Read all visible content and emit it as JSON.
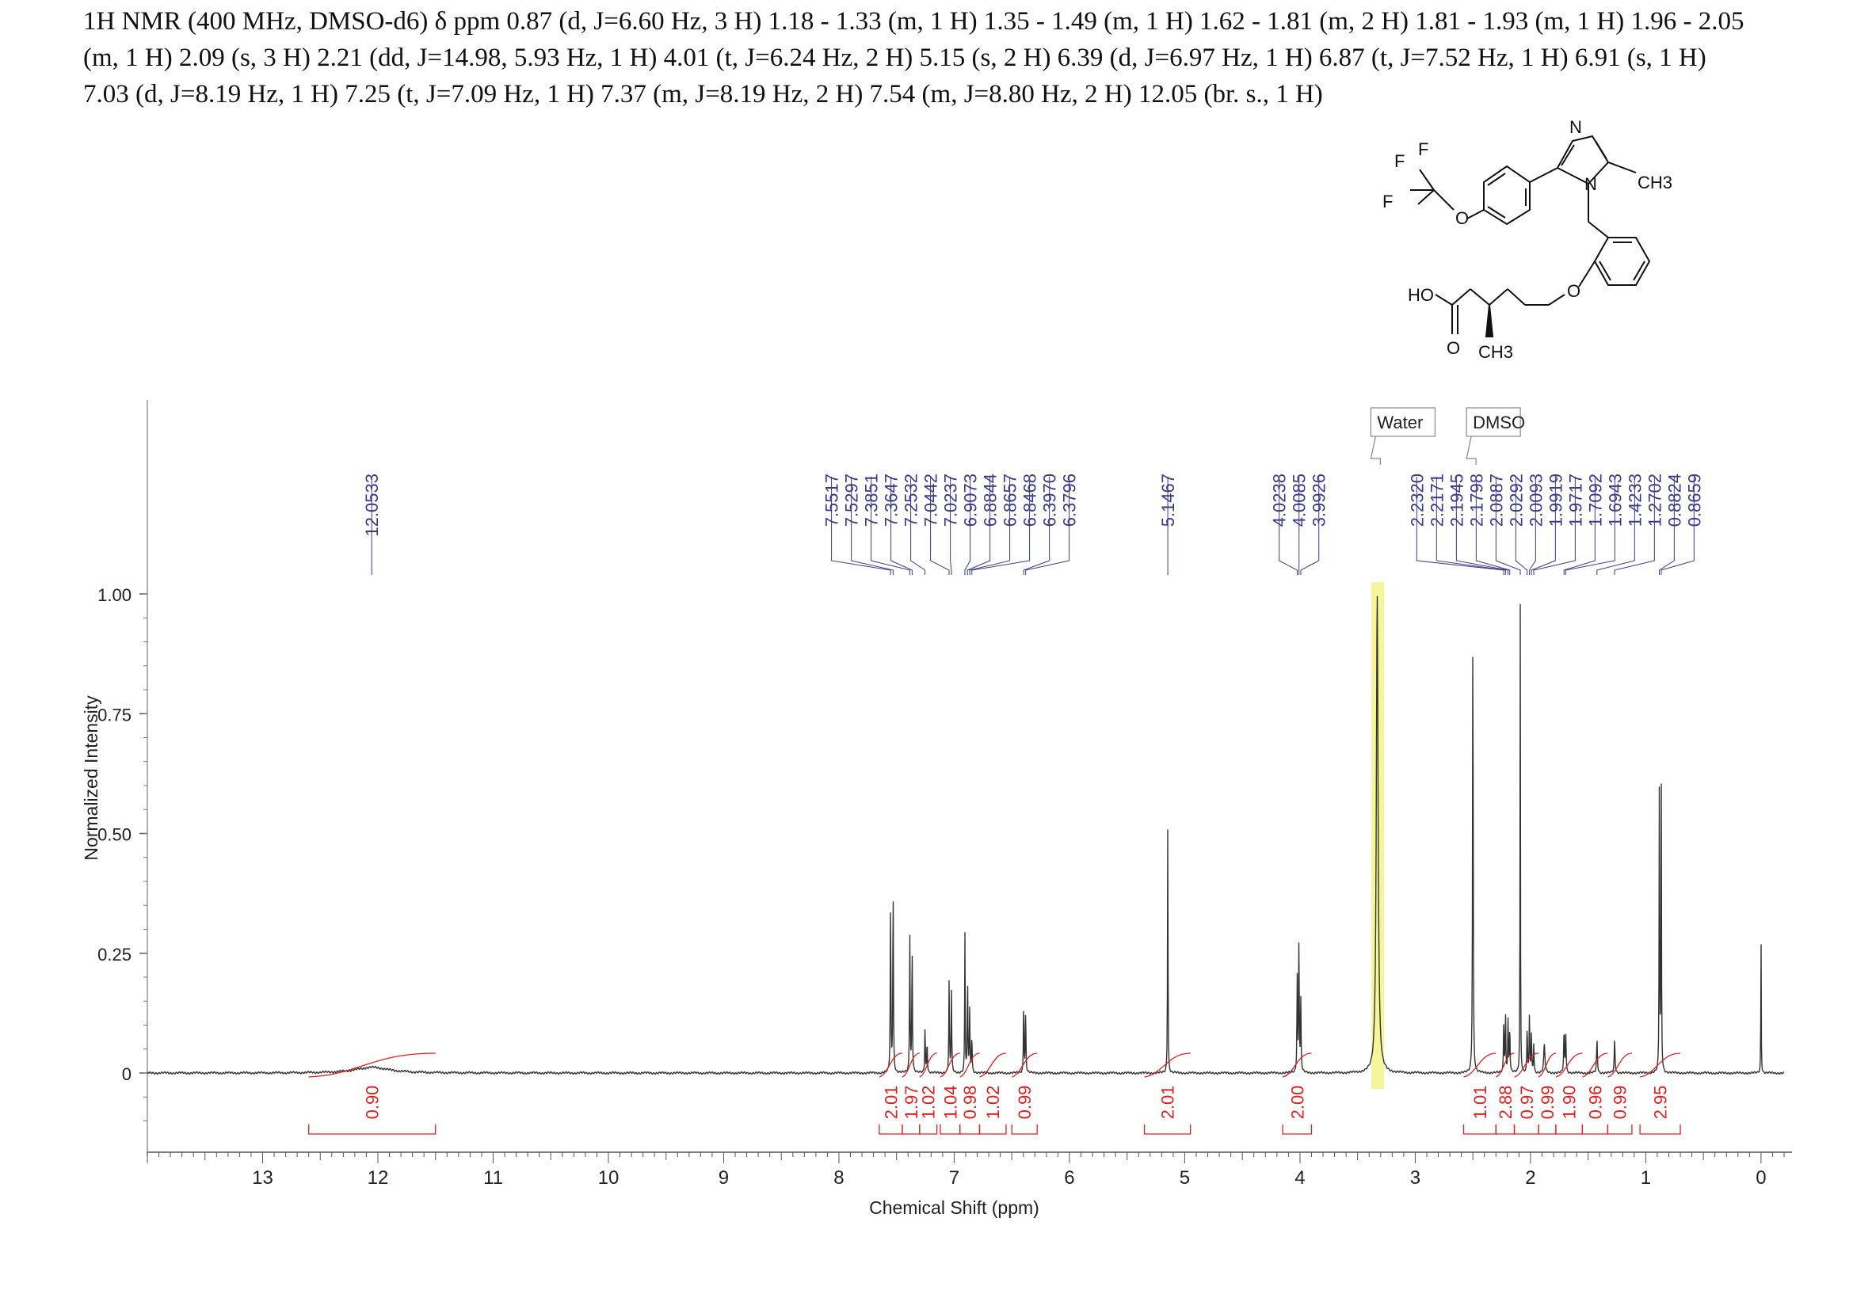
{
  "header": {
    "lines": [
      "1H NMR (400 MHz, DMSO-d6) δ ppm 0.87 (d, J=6.60 Hz, 3 H) 1.18 - 1.33 (m, 1 H) 1.35 - 1.49 (m, 1 H) 1.62 - 1.81 (m, 2 H) 1.81 - 1.93 (m, 1 H) 1.96 - 2.05",
      "(m, 1 H) 2.09 (s, 3 H) 2.21 (dd, J=14.98, 5.93 Hz, 1 H) 4.01 (t, J=6.24 Hz, 2 H) 5.15 (s, 2 H) 6.39 (d, J=6.97 Hz, 1 H) 6.87 (t, J=7.52 Hz, 1 H) 6.91 (s, 1 H)",
      "7.03 (d, J=8.19 Hz, 1 H) 7.25 (t, J=7.09 Hz, 1 H) 7.37 (m, J=8.19 Hz, 2 H) 7.54 (m, J=8.80 Hz, 2 H) 12.05 (br. s., 1 H)"
    ]
  },
  "structure": {
    "atom_labels": [
      "N",
      "N",
      "F",
      "F",
      "F",
      "O",
      "CH3",
      "HO",
      "O",
      "O",
      "CH3"
    ]
  },
  "chart_data": {
    "type": "line",
    "xlabel": "Chemical Shift (ppm)",
    "ylabel": "Normalized Intensity",
    "xlim": [
      14,
      -0.2
    ],
    "x_reversed": true,
    "ylim": [
      -0.15,
      1.0
    ],
    "x_ticks": [
      13,
      12,
      11,
      10,
      9,
      8,
      7,
      6,
      5,
      4,
      3,
      2,
      1,
      0
    ],
    "y_ticks": [
      0,
      0.25,
      0.5,
      0.75,
      1.0
    ],
    "y_tick_labels": [
      "0",
      "0.25",
      "0.50",
      "0.75",
      "1.00"
    ],
    "colors": {
      "spectrum": "#333333",
      "peak_labels": "#3a3a8c",
      "integrals": "#e02020",
      "highlight": "#f5f59a"
    },
    "peak_labels": [
      {
        "group": 1,
        "labels": [
          "12.0533"
        ]
      },
      {
        "group": 2,
        "labels": [
          "7.5517",
          "7.5297",
          "7.3851",
          "7.3647",
          "7.2532",
          "7.0442",
          "7.0237",
          "6.9073",
          "6.8844",
          "6.8657",
          "6.8468",
          "6.3970",
          "6.3796"
        ]
      },
      {
        "group": 3,
        "labels": [
          "5.1467"
        ]
      },
      {
        "group": 4,
        "labels": [
          "4.0238",
          "4.0085",
          "3.9926"
        ]
      },
      {
        "group": 5,
        "labels": [
          "2.2320",
          "2.2171",
          "2.1945",
          "2.1798",
          "2.0887",
          "2.0292",
          "2.0093",
          "1.9919",
          "1.9717",
          "1.7092",
          "1.6943",
          "1.4233",
          "1.2702",
          "0.8824",
          "0.8659"
        ]
      }
    ],
    "solvent_labels": [
      {
        "text": "Water",
        "ppm": 3.33
      },
      {
        "text": "DMSO",
        "ppm": 2.5
      }
    ],
    "peaks": [
      {
        "ppm": 12.05,
        "height": 0.012,
        "width": 0.35
      },
      {
        "ppm": 7.552,
        "height": 0.36,
        "width": 0.006
      },
      {
        "ppm": 7.53,
        "height": 0.4,
        "width": 0.006
      },
      {
        "ppm": 7.385,
        "height": 0.29,
        "width": 0.006
      },
      {
        "ppm": 7.365,
        "height": 0.27,
        "width": 0.006
      },
      {
        "ppm": 7.253,
        "height": 0.1,
        "width": 0.006
      },
      {
        "ppm": 7.235,
        "height": 0.07,
        "width": 0.006
      },
      {
        "ppm": 7.044,
        "height": 0.19,
        "width": 0.006
      },
      {
        "ppm": 7.024,
        "height": 0.17,
        "width": 0.006
      },
      {
        "ppm": 6.907,
        "height": 0.29,
        "width": 0.005
      },
      {
        "ppm": 6.884,
        "height": 0.2,
        "width": 0.006
      },
      {
        "ppm": 6.866,
        "height": 0.13,
        "width": 0.006
      },
      {
        "ppm": 6.847,
        "height": 0.08,
        "width": 0.006
      },
      {
        "ppm": 6.397,
        "height": 0.15,
        "width": 0.006
      },
      {
        "ppm": 6.38,
        "height": 0.13,
        "width": 0.006
      },
      {
        "ppm": 5.147,
        "height": 0.52,
        "width": 0.005
      },
      {
        "ppm": 4.024,
        "height": 0.2,
        "width": 0.006
      },
      {
        "ppm": 4.009,
        "height": 0.28,
        "width": 0.006
      },
      {
        "ppm": 3.993,
        "height": 0.15,
        "width": 0.006
      },
      {
        "ppm": 3.33,
        "height": 1.0,
        "width": 0.018
      },
      {
        "ppm": 2.5,
        "height": 1.0,
        "width": 0.006
      },
      {
        "ppm": 2.232,
        "height": 0.11,
        "width": 0.006
      },
      {
        "ppm": 2.217,
        "height": 0.13,
        "width": 0.006
      },
      {
        "ppm": 2.195,
        "height": 0.11,
        "width": 0.006
      },
      {
        "ppm": 2.18,
        "height": 0.1,
        "width": 0.006
      },
      {
        "ppm": 2.089,
        "height": 0.99,
        "width": 0.004
      },
      {
        "ppm": 2.029,
        "height": 0.1,
        "width": 0.006
      },
      {
        "ppm": 2.009,
        "height": 0.12,
        "width": 0.006
      },
      {
        "ppm": 1.992,
        "height": 0.08,
        "width": 0.006
      },
      {
        "ppm": 1.972,
        "height": 0.06,
        "width": 0.006
      },
      {
        "ppm": 1.88,
        "height": 0.06,
        "width": 0.012
      },
      {
        "ppm": 1.709,
        "height": 0.09,
        "width": 0.007
      },
      {
        "ppm": 1.694,
        "height": 0.08,
        "width": 0.007
      },
      {
        "ppm": 1.423,
        "height": 0.07,
        "width": 0.008
      },
      {
        "ppm": 1.27,
        "height": 0.07,
        "width": 0.008
      },
      {
        "ppm": 0.882,
        "height": 0.61,
        "width": 0.005
      },
      {
        "ppm": 0.866,
        "height": 0.63,
        "width": 0.005
      },
      {
        "ppm": 0.0,
        "height": 0.3,
        "width": 0.004
      }
    ],
    "integrals": [
      {
        "from": 12.6,
        "to": 11.5,
        "value": "0.90"
      },
      {
        "from": 7.65,
        "to": 7.45,
        "value": "2.01"
      },
      {
        "from": 7.45,
        "to": 7.3,
        "value": "1.97"
      },
      {
        "from": 7.3,
        "to": 7.15,
        "value": "1.02"
      },
      {
        "from": 7.12,
        "to": 6.95,
        "value": "1.04"
      },
      {
        "from": 6.95,
        "to": 6.78,
        "value": "0.98"
      },
      {
        "from": 6.78,
        "to": 6.55,
        "value": "1.02"
      },
      {
        "from": 6.5,
        "to": 6.28,
        "value": "0.99"
      },
      {
        "from": 5.35,
        "to": 4.95,
        "value": "2.01"
      },
      {
        "from": 4.15,
        "to": 3.9,
        "value": "2.00"
      },
      {
        "from": 2.58,
        "to": 2.3,
        "value": "1.01"
      },
      {
        "from": 2.3,
        "to": 2.14,
        "value": "2.88"
      },
      {
        "from": 2.14,
        "to": 1.93,
        "value": "0.97"
      },
      {
        "from": 1.93,
        "to": 1.78,
        "value": "0.99"
      },
      {
        "from": 1.78,
        "to": 1.55,
        "value": "1.90"
      },
      {
        "from": 1.55,
        "to": 1.33,
        "value": "0.96"
      },
      {
        "from": 1.33,
        "to": 1.12,
        "value": "0.99"
      },
      {
        "from": 1.05,
        "to": 0.7,
        "value": "2.95"
      }
    ],
    "highlight": {
      "from": 3.38,
      "to": 3.27
    }
  }
}
